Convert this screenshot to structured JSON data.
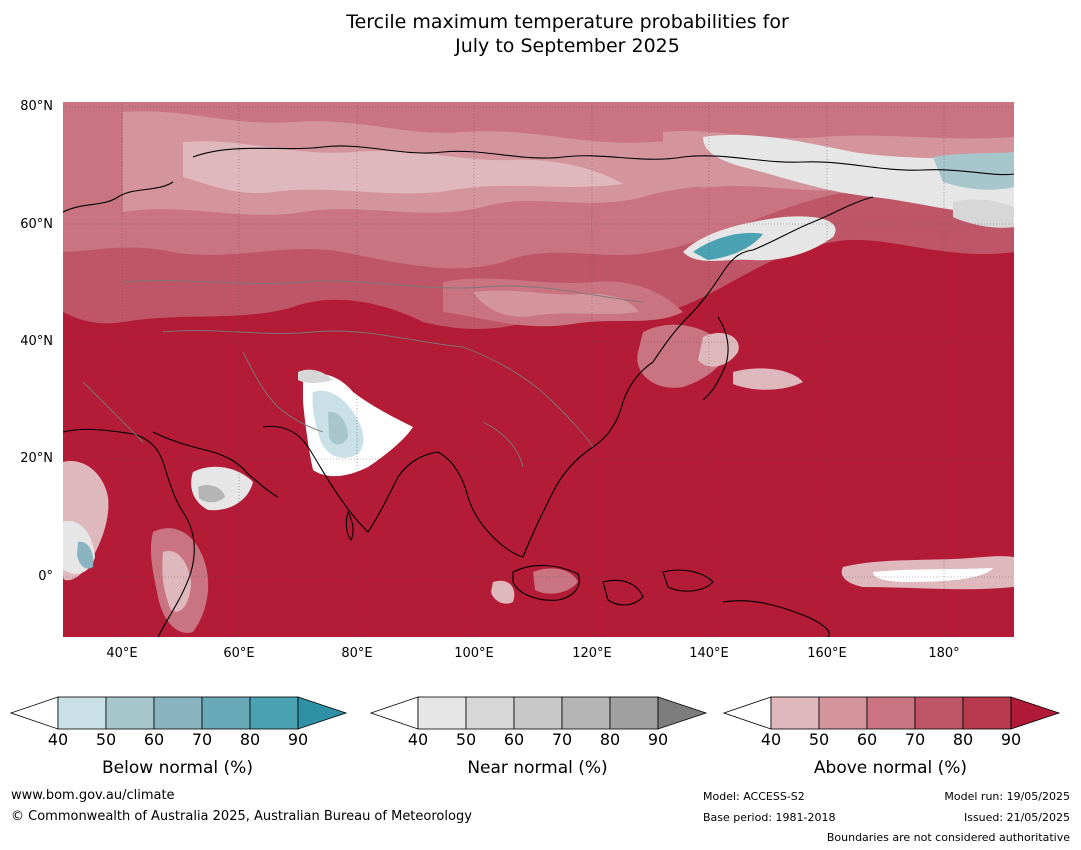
{
  "title_line1": "Tercile maximum temperature probabilities for",
  "title_line2": "July to September 2025",
  "map": {
    "latitude_labels": [
      "80°N",
      "60°N",
      "40°N",
      "20°N",
      "0°"
    ],
    "longitude_labels": [
      "40°E",
      "60°E",
      "80°E",
      "100°E",
      "120°E",
      "140°E",
      "160°E",
      "180°"
    ]
  },
  "colorbars": [
    {
      "label": "Below normal (%)",
      "ticks": [
        "40",
        "50",
        "60",
        "70",
        "80",
        "90"
      ],
      "colors": [
        "#ffffff",
        "#c9e1e6",
        "#a7c6cc",
        "#8ab4c0",
        "#69a9b7",
        "#4aa1b1",
        "#2f8fa5"
      ]
    },
    {
      "label": "Near normal (%)",
      "ticks": [
        "40",
        "50",
        "60",
        "70",
        "80",
        "90"
      ],
      "colors": [
        "#ffffff",
        "#e6e6e6",
        "#d7d7d7",
        "#c8c8c8",
        "#b5b5b5",
        "#a0a0a0",
        "#7d7d7d"
      ]
    },
    {
      "label": "Above normal (%)",
      "ticks": [
        "40",
        "50",
        "60",
        "70",
        "80",
        "90"
      ],
      "colors": [
        "#ffffff",
        "#dfb8bd",
        "#d4949c",
        "#c97480",
        "#bf5668",
        "#b73a4f",
        "#b01a37"
      ]
    }
  ],
  "footer": {
    "website": "www.bom.gov.au/climate",
    "copyright": "© Commonwealth of Australia 2025, Australian Bureau of Meteorology",
    "model": "Model: ACCESS-S2",
    "base_period": "Base period: 1981-2018",
    "model_run": "Model run: 19/05/2025",
    "issued": "Issued: 21/05/2025",
    "disclaimer": "Boundaries are not considered authoritative"
  }
}
